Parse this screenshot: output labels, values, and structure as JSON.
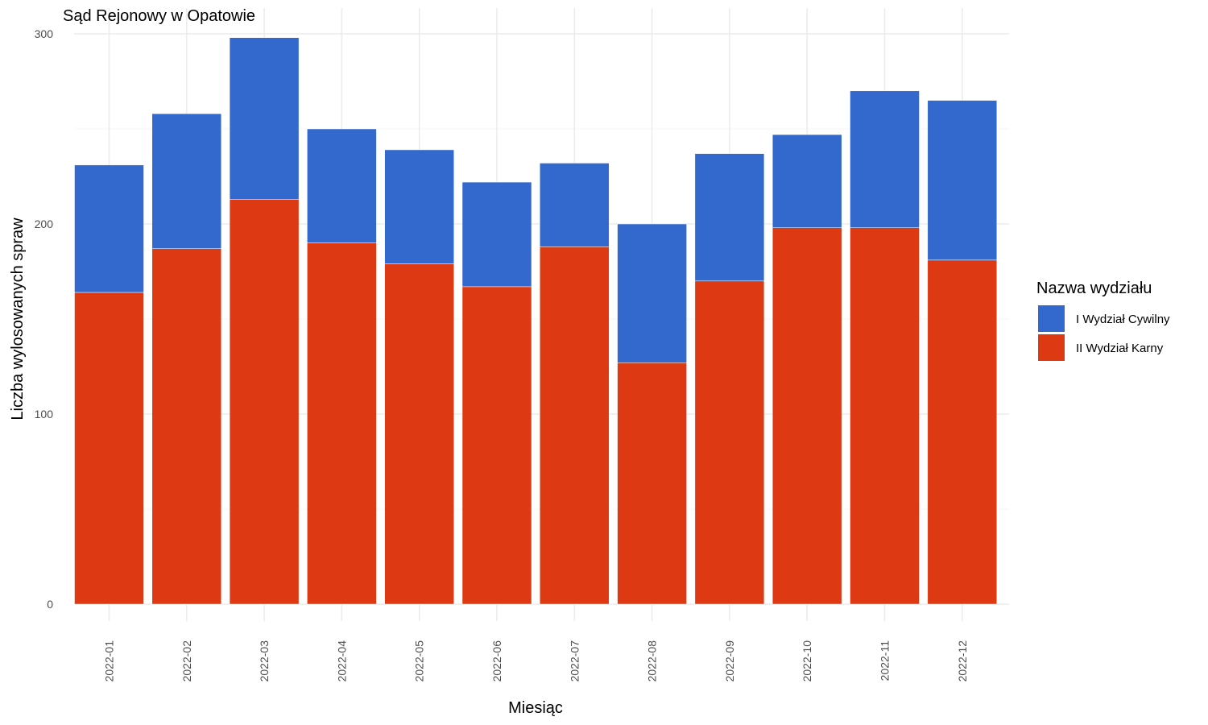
{
  "chart_data": {
    "type": "bar",
    "stacked": true,
    "title": "Sąd Rejonowy w Opatowie",
    "xlabel": "Miesiąc",
    "ylabel": "Liczba wylosowanych spraw",
    "ylim": [
      0,
      300
    ],
    "yticks": [
      "0",
      "100",
      "200",
      "300"
    ],
    "grid": true,
    "legend_placement": "right",
    "legend_title": "Nazwa wydziału",
    "categories": [
      "2022-01",
      "2022-02",
      "2022-03",
      "2022-04",
      "2022-05",
      "2022-06",
      "2022-07",
      "2022-08",
      "2022-09",
      "2022-10",
      "2022-11",
      "2022-12"
    ],
    "series": [
      {
        "name": "II Wydział Karny",
        "color": "#dd3912",
        "values": [
          164,
          187,
          213,
          190,
          179,
          167,
          188,
          127,
          170,
          198,
          198,
          181
        ]
      },
      {
        "name": "I Wydział Cywilny",
        "color": "#3369cc",
        "values": [
          67,
          71,
          85,
          60,
          60,
          55,
          44,
          73,
          67,
          49,
          72,
          84
        ]
      }
    ],
    "legend_order": [
      "I Wydział Cywilny",
      "II Wydział Karny"
    ]
  }
}
